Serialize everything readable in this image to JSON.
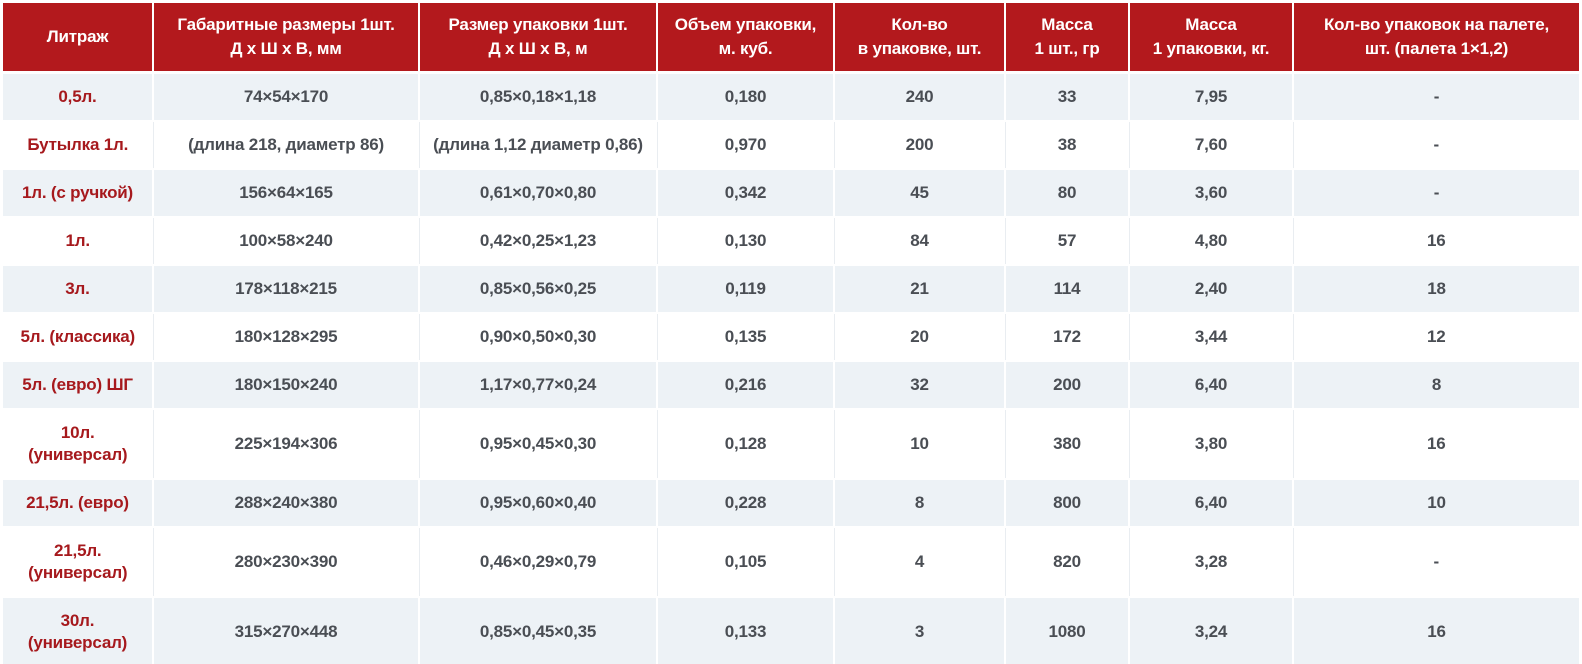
{
  "theme": {
    "header_bg": "#b3191d",
    "header_text": "#ffffff",
    "row_alt_bg": "#edf2f6",
    "row_bg": "#ffffff",
    "label_text": "#a6191d",
    "data_text": "#4a4e54",
    "divider": "#e9edf1"
  },
  "table": {
    "columns": [
      {
        "id": "litrazh",
        "lines": [
          "Литраж"
        ]
      },
      {
        "id": "item-dimensions",
        "lines": [
          "Габаритные размеры 1шт.",
          "Д х Ш х В, мм"
        ]
      },
      {
        "id": "pack-size",
        "lines": [
          "Размер упаковки 1шт.",
          "Д х Ш х В, м"
        ]
      },
      {
        "id": "pack-volume",
        "lines": [
          "Объем упаковки,",
          "м. куб."
        ]
      },
      {
        "id": "qty-per-pack",
        "lines": [
          "Кол-во",
          "в упаковке, шт."
        ]
      },
      {
        "id": "mass-per-item",
        "lines": [
          "Масса",
          "1 шт., гр"
        ]
      },
      {
        "id": "mass-per-pack",
        "lines": [
          "Масса",
          "1 упаковки, кг."
        ]
      },
      {
        "id": "packs-per-pallet",
        "lines": [
          "Кол-во упаковок на палете,",
          "шт. (палета 1×1,2)"
        ]
      }
    ],
    "rows": [
      [
        "0,5л.",
        "74×54×170",
        "0,85×0,18×1,18",
        "0,180",
        "240",
        "33",
        "7,95",
        "-"
      ],
      [
        "Бутылка 1л.",
        "(длина 218, диаметр 86)",
        "(длина 1,12 диаметр 0,86)",
        "0,970",
        "200",
        "38",
        "7,60",
        "-"
      ],
      [
        "1л. (с ручкой)",
        "156×64×165",
        "0,61×0,70×0,80",
        "0,342",
        "45",
        "80",
        "3,60",
        "-"
      ],
      [
        "1л.",
        "100×58×240",
        "0,42×0,25×1,23",
        "0,130",
        "84",
        "57",
        "4,80",
        "16"
      ],
      [
        "3л.",
        "178×118×215",
        "0,85×0,56×0,25",
        "0,119",
        "21",
        "114",
        "2,40",
        "18"
      ],
      [
        "5л. (классика)",
        "180×128×295",
        "0,90×0,50×0,30",
        "0,135",
        "20",
        "172",
        "3,44",
        "12"
      ],
      [
        "5л. (евро) ШГ",
        "180×150×240",
        "1,17×0,77×0,24",
        "0,216",
        "32",
        "200",
        "6,40",
        "8"
      ],
      [
        "10л. (универсал)",
        "225×194×306",
        "0,95×0,45×0,30",
        "0,128",
        "10",
        "380",
        "3,80",
        "16"
      ],
      [
        "21,5л. (евро)",
        "288×240×380",
        "0,95×0,60×0,40",
        "0,228",
        "8",
        "800",
        "6,40",
        "10"
      ],
      [
        "21,5л. (универсал)",
        "280×230×390",
        "0,46×0,29×0,79",
        "0,105",
        "4",
        "820",
        "3,28",
        "-"
      ],
      [
        "30л. (универсал)",
        "315×270×448",
        "0,85×0,45×0,35",
        "0,133",
        "3",
        "1080",
        "3,24",
        "16"
      ]
    ]
  }
}
